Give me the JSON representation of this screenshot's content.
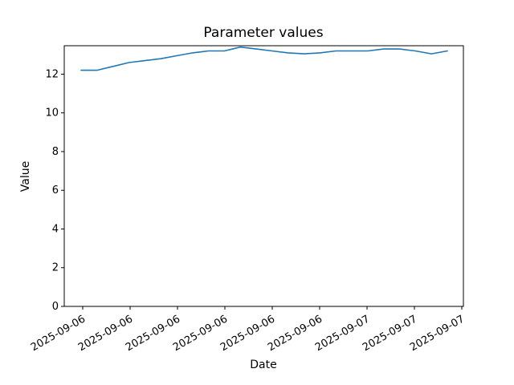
{
  "chart_data": {
    "type": "line",
    "title": "Parameter values",
    "xlabel": "Date",
    "ylabel": "Value",
    "grid": false,
    "legend": "none",
    "line_color": "#1f77b4",
    "background_color": "#ffffff",
    "spine_color": "#000000",
    "ylim": [
      0,
      13.47
    ],
    "y_ticks": [
      0,
      2,
      4,
      6,
      8,
      10,
      12
    ],
    "x_ticklabels": [
      "2025-09-06",
      "2025-09-06",
      "2025-09-06",
      "2025-09-06",
      "2025-09-06",
      "2025-09-06",
      "2025-09-07",
      "2025-09-07",
      "2025-09-07"
    ],
    "x_ticklabel_rotation_deg": 30,
    "series": [
      {
        "name": "Parameter values",
        "values": [
          12.2,
          12.2,
          12.4,
          12.6,
          12.7,
          12.8,
          12.95,
          13.1,
          13.2,
          13.2,
          13.4,
          13.3,
          13.2,
          13.1,
          13.05,
          13.1,
          13.2,
          13.2,
          13.2,
          13.3,
          13.3,
          13.2,
          13.05,
          13.2
        ]
      }
    ]
  }
}
